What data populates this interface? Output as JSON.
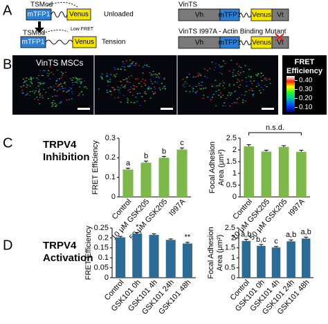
{
  "panel_a": {
    "label": "A",
    "tsmod_unloaded": {
      "title": "TSMod",
      "donor": "mTFP1",
      "acceptor": "Venus",
      "state": "Unloaded"
    },
    "tsmod_tension": {
      "title": "TSMod",
      "note": "Low FRET",
      "donor": "mTFP1",
      "acceptor": "Venus",
      "state": "Tension"
    },
    "vints": {
      "title": "VinTS",
      "parts": [
        "Vh",
        "mTFP1",
        "Venus",
        "Vt"
      ]
    },
    "vints_mutant": {
      "title": "VinTS I997A - Actin Binding Mutant",
      "parts": [
        "Vh",
        "mTFP1",
        "Venus",
        "Vt"
      ]
    }
  },
  "panel_b": {
    "label": "B",
    "image_label": "VinTS MSCs",
    "colorbar": {
      "title": [
        "FRET",
        "Efficiency"
      ],
      "ticks": [
        {
          "value": 0.4,
          "label": "0.40"
        },
        {
          "value": 0.3,
          "label": "0.30"
        },
        {
          "value": 0.2,
          "label": "0.20"
        },
        {
          "value": 0.1,
          "label": "0.10"
        }
      ],
      "lim": [
        0.05,
        0.45
      ]
    }
  },
  "panel_c": {
    "label": "C",
    "title": [
      "TRPV4",
      "Inhibition"
    ]
  },
  "panel_d": {
    "label": "D",
    "title": [
      "TRPV4",
      "Activation"
    ]
  },
  "chart_data": [
    {
      "type": "bar",
      "ylabel": "FRET Efficiency",
      "color": "#7cb84a",
      "categories": [
        "Control",
        "10 μM GSK205",
        "50 μM GSK205",
        "I997A"
      ],
      "values": [
        0.14,
        0.175,
        0.2,
        0.242
      ],
      "errors": [
        0.007,
        0.008,
        0.007,
        0.008
      ],
      "annotations": [
        "a",
        "b",
        "b",
        "c"
      ],
      "ylim": [
        0,
        0.3
      ],
      "yticks": [
        0,
        0.1,
        0.2,
        0.3
      ]
    },
    {
      "type": "bar",
      "ylabel": [
        "Focal Adhesion",
        "Area (μm²)"
      ],
      "color": "#7cb84a",
      "categories": [
        "Control",
        "10 μM GSK205",
        "50 μM GSK205",
        "I997A"
      ],
      "values": [
        2.15,
        1.93,
        2.13,
        1.92
      ],
      "errors": [
        0.07,
        0.06,
        0.05,
        0.07
      ],
      "bracket_label": "n.s.d.",
      "ylim": [
        0,
        2.5
      ],
      "yticks": [
        0,
        0.5,
        1,
        1.5,
        2,
        2.5
      ]
    },
    {
      "type": "bar",
      "ylabel": "FRET Efficiency",
      "color": "#2c6b96",
      "categories": [
        "Control",
        "GSK101 0h",
        "GSK101 4h",
        "GSK101 24h",
        "GSK101 48h"
      ],
      "values": [
        0.203,
        0.222,
        0.215,
        0.19,
        0.172
      ],
      "errors": [
        0.005,
        0.006,
        0.006,
        0.005,
        0.006
      ],
      "annotations": [
        null,
        "*",
        null,
        null,
        "**"
      ],
      "ylim": [
        0,
        0.25
      ],
      "yticks": [
        0,
        0.05,
        0.1,
        0.15,
        0.2,
        0.25
      ]
    },
    {
      "type": "bar",
      "ylabel": [
        "Focal Adhesion",
        "Area (μm²)"
      ],
      "color": "#2c6b96",
      "categories": [
        "Control",
        "GSK101 0h",
        "GSK101 4h",
        "GSK101 24h",
        "GSK101 48h"
      ],
      "values": [
        1.85,
        1.6,
        1.52,
        1.83,
        1.97
      ],
      "errors": [
        0.08,
        0.07,
        0.05,
        0.07,
        0.07
      ],
      "annotations": [
        "a,b",
        "b,c",
        "c",
        "a,b",
        "a,b"
      ],
      "ylim": [
        0,
        2.5
      ],
      "yticks": [
        0,
        0.5,
        1,
        1.5,
        2,
        2.5
      ]
    }
  ]
}
